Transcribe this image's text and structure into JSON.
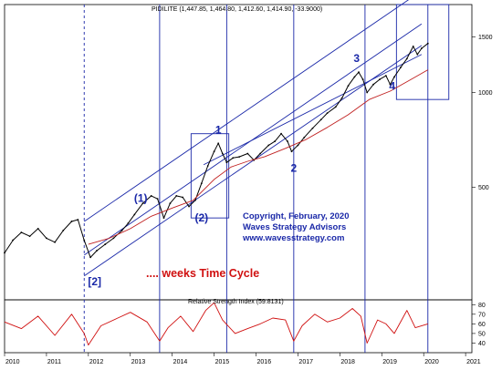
{
  "chart_data": {
    "type": "line",
    "header": "PIDILITE (1,447.85, 1,464.80, 1,412.60, 1,414.90, -33.9000)",
    "indicator_label": "Relative Strength Index (59.8131)",
    "x_ticks": [
      "2010",
      "2011",
      "2012",
      "2013",
      "2014",
      "2015",
      "2016",
      "2017",
      "2018",
      "2019",
      "2020",
      "2021"
    ],
    "x_range": [
      2010.0,
      2021.15
    ],
    "price_scale": "log",
    "price_ylim": [
      220,
      1900
    ],
    "price_ticks": [
      500,
      1000,
      1500
    ],
    "rsi_ylim": [
      30,
      85
    ],
    "rsi_ticks": [
      40,
      50,
      60,
      70,
      80
    ],
    "series": [
      {
        "role": "price",
        "color": "#000000",
        "points": [
          [
            2010.0,
            310
          ],
          [
            2010.2,
            340
          ],
          [
            2010.4,
            360
          ],
          [
            2010.6,
            350
          ],
          [
            2010.8,
            370
          ],
          [
            2011.0,
            345
          ],
          [
            2011.2,
            335
          ],
          [
            2011.4,
            365
          ],
          [
            2011.6,
            390
          ],
          [
            2011.75,
            395
          ],
          [
            2011.9,
            340
          ],
          [
            2012.05,
            300
          ],
          [
            2012.2,
            315
          ],
          [
            2012.4,
            330
          ],
          [
            2012.6,
            345
          ],
          [
            2012.8,
            365
          ],
          [
            2012.95,
            385
          ],
          [
            2013.1,
            410
          ],
          [
            2013.3,
            445
          ],
          [
            2013.5,
            470
          ],
          [
            2013.65,
            460
          ],
          [
            2013.8,
            400
          ],
          [
            2013.95,
            445
          ],
          [
            2014.1,
            470
          ],
          [
            2014.25,
            465
          ],
          [
            2014.4,
            435
          ],
          [
            2014.55,
            455
          ],
          [
            2014.7,
            515
          ],
          [
            2014.85,
            585
          ],
          [
            2015.0,
            650
          ],
          [
            2015.1,
            690
          ],
          [
            2015.2,
            640
          ],
          [
            2015.3,
            600
          ],
          [
            2015.45,
            620
          ],
          [
            2015.6,
            625
          ],
          [
            2015.8,
            640
          ],
          [
            2015.95,
            610
          ],
          [
            2016.1,
            640
          ],
          [
            2016.3,
            680
          ],
          [
            2016.45,
            700
          ],
          [
            2016.6,
            740
          ],
          [
            2016.75,
            700
          ],
          [
            2016.85,
            650
          ],
          [
            2017.0,
            680
          ],
          [
            2017.15,
            720
          ],
          [
            2017.35,
            770
          ],
          [
            2017.55,
            820
          ],
          [
            2017.7,
            860
          ],
          [
            2017.9,
            900
          ],
          [
            2018.05,
            960
          ],
          [
            2018.2,
            1050
          ],
          [
            2018.35,
            1120
          ],
          [
            2018.45,
            1160
          ],
          [
            2018.55,
            1100
          ],
          [
            2018.65,
            1000
          ],
          [
            2018.8,
            1060
          ],
          [
            2018.95,
            1100
          ],
          [
            2019.1,
            1130
          ],
          [
            2019.2,
            1060
          ],
          [
            2019.3,
            1120
          ],
          [
            2019.45,
            1200
          ],
          [
            2019.6,
            1280
          ],
          [
            2019.75,
            1400
          ],
          [
            2019.85,
            1320
          ],
          [
            2019.95,
            1380
          ],
          [
            2020.1,
            1430
          ]
        ]
      },
      {
        "role": "moving_average",
        "color": "#c02020",
        "points": [
          [
            2012.0,
            330
          ],
          [
            2012.5,
            345
          ],
          [
            2013.0,
            370
          ],
          [
            2013.5,
            405
          ],
          [
            2014.0,
            430
          ],
          [
            2014.5,
            455
          ],
          [
            2015.0,
            530
          ],
          [
            2015.4,
            580
          ],
          [
            2015.8,
            605
          ],
          [
            2016.2,
            625
          ],
          [
            2016.7,
            665
          ],
          [
            2017.2,
            710
          ],
          [
            2017.7,
            775
          ],
          [
            2018.2,
            850
          ],
          [
            2018.7,
            950
          ],
          [
            2019.2,
            1010
          ],
          [
            2019.7,
            1100
          ],
          [
            2020.1,
            1180
          ]
        ]
      },
      {
        "role": "rsi",
        "color": "#d01010",
        "points": [
          [
            2010.0,
            62
          ],
          [
            2010.4,
            55
          ],
          [
            2010.8,
            68
          ],
          [
            2011.2,
            48
          ],
          [
            2011.6,
            70
          ],
          [
            2011.9,
            50
          ],
          [
            2012.0,
            38
          ],
          [
            2012.3,
            58
          ],
          [
            2012.7,
            66
          ],
          [
            2013.0,
            72
          ],
          [
            2013.4,
            62
          ],
          [
            2013.7,
            42
          ],
          [
            2013.9,
            56
          ],
          [
            2014.2,
            68
          ],
          [
            2014.5,
            52
          ],
          [
            2014.8,
            74
          ],
          [
            2015.0,
            82
          ],
          [
            2015.2,
            64
          ],
          [
            2015.5,
            50
          ],
          [
            2015.8,
            55
          ],
          [
            2016.1,
            60
          ],
          [
            2016.4,
            66
          ],
          [
            2016.7,
            64
          ],
          [
            2016.9,
            42
          ],
          [
            2017.1,
            58
          ],
          [
            2017.4,
            70
          ],
          [
            2017.7,
            62
          ],
          [
            2018.0,
            66
          ],
          [
            2018.3,
            76
          ],
          [
            2018.5,
            68
          ],
          [
            2018.65,
            40
          ],
          [
            2018.9,
            64
          ],
          [
            2019.1,
            60
          ],
          [
            2019.3,
            50
          ],
          [
            2019.6,
            74
          ],
          [
            2019.8,
            56
          ],
          [
            2020.1,
            60
          ]
        ]
      }
    ],
    "channels": [
      {
        "p1": [
          2011.9,
          390
        ],
        "p2": [
          2019.95,
          2100
        ],
        "color": "#1a28a8"
      },
      {
        "p1": [
          2011.9,
          305
        ],
        "p2": [
          2019.95,
          1650
        ],
        "color": "#1a28a8"
      },
      {
        "p1": [
          2011.9,
          262
        ],
        "p2": [
          2019.95,
          1410
        ],
        "color": "#1a28a8"
      },
      {
        "p1": [
          2014.75,
          590
        ],
        "p2": [
          2019.95,
          1320
        ],
        "color": "#1a28a8"
      }
    ],
    "boxes": [
      {
        "x1": 2014.45,
        "x2": 2015.35,
        "y1": 400,
        "y2": 740,
        "color": "#1a28a8"
      },
      {
        "x1": 2019.35,
        "x2": 2020.6,
        "y1": 950,
        "y2": 1900,
        "color": "#1a28a8"
      }
    ],
    "cycle_lines": [
      2011.9,
      2013.7,
      2015.3,
      2016.9,
      2018.6,
      2020.1
    ],
    "wave_labels": [
      {
        "text": "1",
        "x": 2015.1,
        "y": 740
      },
      {
        "text": "2",
        "x": 2016.9,
        "y": 560
      },
      {
        "text": "3",
        "x": 2018.4,
        "y": 1250
      },
      {
        "text": "4",
        "x": 2019.25,
        "y": 1020
      },
      {
        "text": "(1)",
        "x": 2013.25,
        "y": 450
      },
      {
        "text": "(2)",
        "x": 2014.7,
        "y": 390
      },
      {
        "text": "[2]",
        "x": 2012.15,
        "y": 245
      }
    ],
    "annotations": [
      "Copyright, February, 2020",
      "Waves Strategy Advisors",
      "www.wavesstrategy.com",
      ".... weeks Time Cycle"
    ]
  }
}
